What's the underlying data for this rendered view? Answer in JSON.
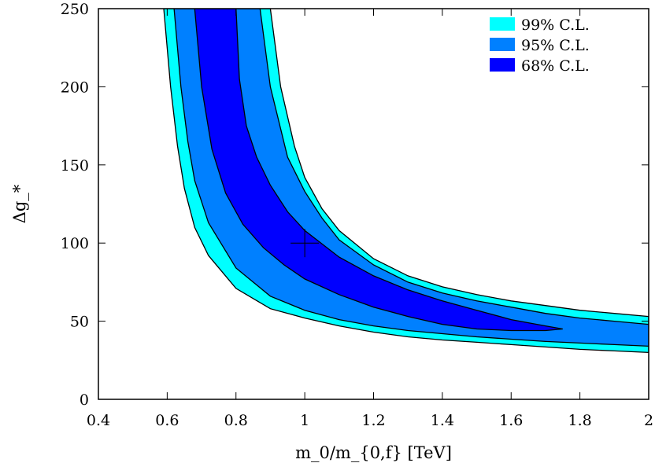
{
  "chart_data": {
    "type": "area",
    "title": "",
    "xlabel": "m_0/m_{0,f} [TeV]",
    "ylabel": "Δg_*",
    "xlim": [
      0.4,
      2.0
    ],
    "ylim": [
      0,
      250
    ],
    "x_ticks": [
      "0.4",
      "0.6",
      "0.8",
      "1",
      "1.2",
      "1.4",
      "1.6",
      "1.8",
      "2"
    ],
    "y_ticks": [
      "0",
      "50",
      "100",
      "150",
      "200",
      "250"
    ],
    "grid": false,
    "legend_position": "top-right",
    "best_fit_point": {
      "x": 1.0,
      "y": 100,
      "marker": "plus"
    },
    "series": [
      {
        "name": "99% C.L.",
        "color": "#00ffff",
        "lower_boundary": [
          [
            0.59,
            250
          ],
          [
            0.61,
            200
          ],
          [
            0.63,
            162
          ],
          [
            0.65,
            135
          ],
          [
            0.68,
            110
          ],
          [
            0.72,
            92
          ],
          [
            0.8,
            71
          ],
          [
            0.9,
            58
          ],
          [
            1.0,
            52
          ],
          [
            1.1,
            47
          ],
          [
            1.2,
            43
          ],
          [
            1.3,
            40
          ],
          [
            1.4,
            38
          ],
          [
            1.5,
            36.5
          ],
          [
            1.6,
            35
          ],
          [
            1.7,
            33.5
          ],
          [
            1.8,
            32
          ],
          [
            1.9,
            31
          ],
          [
            2.0,
            30
          ]
        ],
        "upper_boundary": [
          [
            0.9,
            250
          ],
          [
            0.93,
            200
          ],
          [
            0.97,
            162
          ],
          [
            1.0,
            142
          ],
          [
            1.05,
            122
          ],
          [
            1.1,
            108
          ],
          [
            1.2,
            90
          ],
          [
            1.3,
            79
          ],
          [
            1.4,
            72
          ],
          [
            1.5,
            67
          ],
          [
            1.6,
            63
          ],
          [
            1.7,
            60
          ],
          [
            1.8,
            57
          ],
          [
            1.9,
            55
          ],
          [
            2.0,
            53
          ]
        ]
      },
      {
        "name": "95% C.L.",
        "color": "#0080ff",
        "lower_boundary": [
          [
            0.62,
            250
          ],
          [
            0.64,
            200
          ],
          [
            0.66,
            165
          ],
          [
            0.68,
            140
          ],
          [
            0.72,
            113
          ],
          [
            0.8,
            84
          ],
          [
            0.9,
            66
          ],
          [
            1.0,
            57
          ],
          [
            1.1,
            51
          ],
          [
            1.2,
            47
          ],
          [
            1.3,
            44
          ],
          [
            1.4,
            42
          ],
          [
            1.5,
            40
          ],
          [
            1.6,
            38.5
          ],
          [
            1.7,
            37
          ],
          [
            1.8,
            36
          ],
          [
            1.9,
            35
          ],
          [
            2.0,
            34
          ]
        ],
        "upper_boundary": [
          [
            0.87,
            250
          ],
          [
            0.9,
            200
          ],
          [
            0.95,
            155
          ],
          [
            1.0,
            133
          ],
          [
            1.05,
            116
          ],
          [
            1.1,
            102
          ],
          [
            1.2,
            86
          ],
          [
            1.3,
            75
          ],
          [
            1.4,
            68
          ],
          [
            1.5,
            63
          ],
          [
            1.6,
            59
          ],
          [
            1.7,
            55
          ],
          [
            1.8,
            52
          ],
          [
            1.9,
            50
          ],
          [
            2.0,
            48
          ]
        ]
      },
      {
        "name": "68% C.L.",
        "color": "#0000ff",
        "lower_boundary": [
          [
            0.68,
            250
          ],
          [
            0.7,
            200
          ],
          [
            0.73,
            160
          ],
          [
            0.77,
            132
          ],
          [
            0.82,
            112
          ],
          [
            0.88,
            97
          ],
          [
            0.94,
            86
          ],
          [
            1.0,
            77
          ],
          [
            1.1,
            67
          ],
          [
            1.2,
            59
          ],
          [
            1.3,
            53
          ],
          [
            1.4,
            48
          ],
          [
            1.5,
            45
          ],
          [
            1.6,
            44
          ],
          [
            1.7,
            44
          ],
          [
            1.75,
            45
          ]
        ],
        "upper_boundary": [
          [
            0.8,
            250
          ],
          [
            0.81,
            205
          ],
          [
            0.83,
            175
          ],
          [
            0.86,
            155
          ],
          [
            0.9,
            137
          ],
          [
            0.95,
            120
          ],
          [
            1.0,
            108
          ],
          [
            1.1,
            91
          ],
          [
            1.2,
            79
          ],
          [
            1.3,
            70
          ],
          [
            1.4,
            63
          ],
          [
            1.5,
            57
          ],
          [
            1.6,
            51
          ],
          [
            1.7,
            47
          ],
          [
            1.75,
            45
          ]
        ]
      }
    ]
  }
}
